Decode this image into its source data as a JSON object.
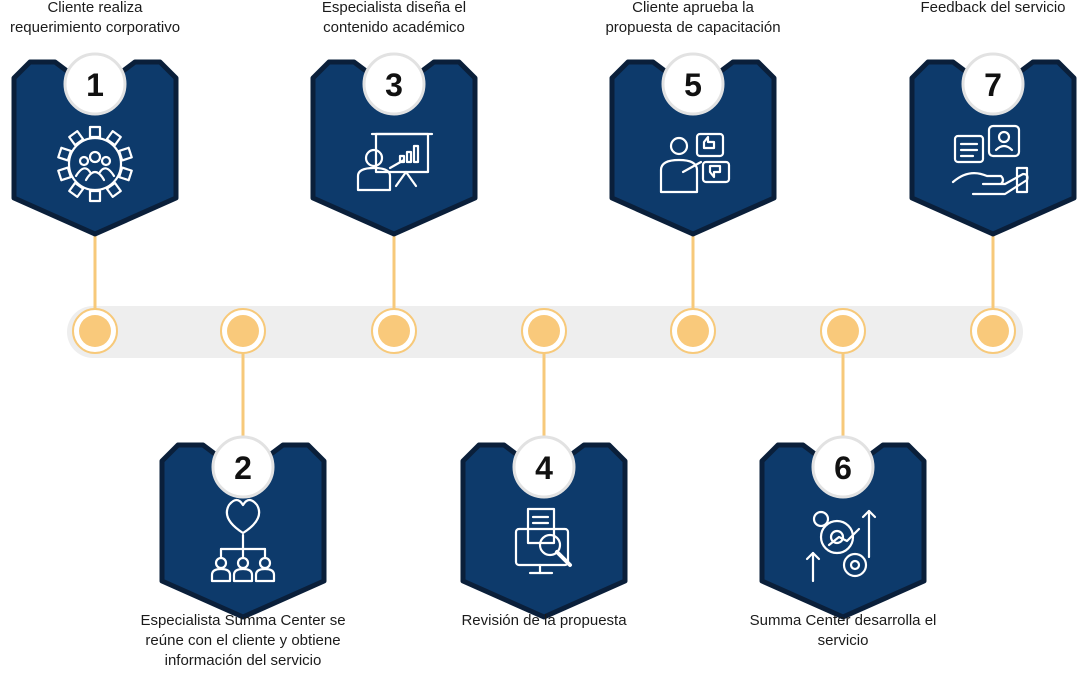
{
  "colors": {
    "badge_fill": "#0d3a6b",
    "badge_border": "#0a1f3a",
    "connector": "#f7c97a",
    "node_fill": "#f9c97b",
    "track": "#eeeeee",
    "icon_stroke": "#ffffff"
  },
  "steps": [
    {
      "number": "1",
      "label": "Cliente realiza\nrequerimiento corporativo",
      "icon": "gear-team-icon",
      "position": "top"
    },
    {
      "number": "2",
      "label": "Especialista Summa Center se\nreúne con el cliente y obtiene\ninformación del servicio",
      "icon": "handshake-network-icon",
      "position": "bottom"
    },
    {
      "number": "3",
      "label": "Especialista diseña el\ncontenido académico",
      "icon": "presenter-board-icon",
      "position": "top"
    },
    {
      "number": "4",
      "label": "Revisión de la propuesta",
      "icon": "document-review-icon",
      "position": "bottom"
    },
    {
      "number": "5",
      "label": "Cliente aprueba la\npropuesta de capacitación",
      "icon": "approval-feedback-icon",
      "position": "top"
    },
    {
      "number": "6",
      "label": "Summa Center desarrolla el\nservicio",
      "icon": "growth-gears-icon",
      "position": "bottom"
    },
    {
      "number": "7",
      "label": "Feedback del servicio",
      "icon": "feedback-hand-icon",
      "position": "top"
    }
  ]
}
